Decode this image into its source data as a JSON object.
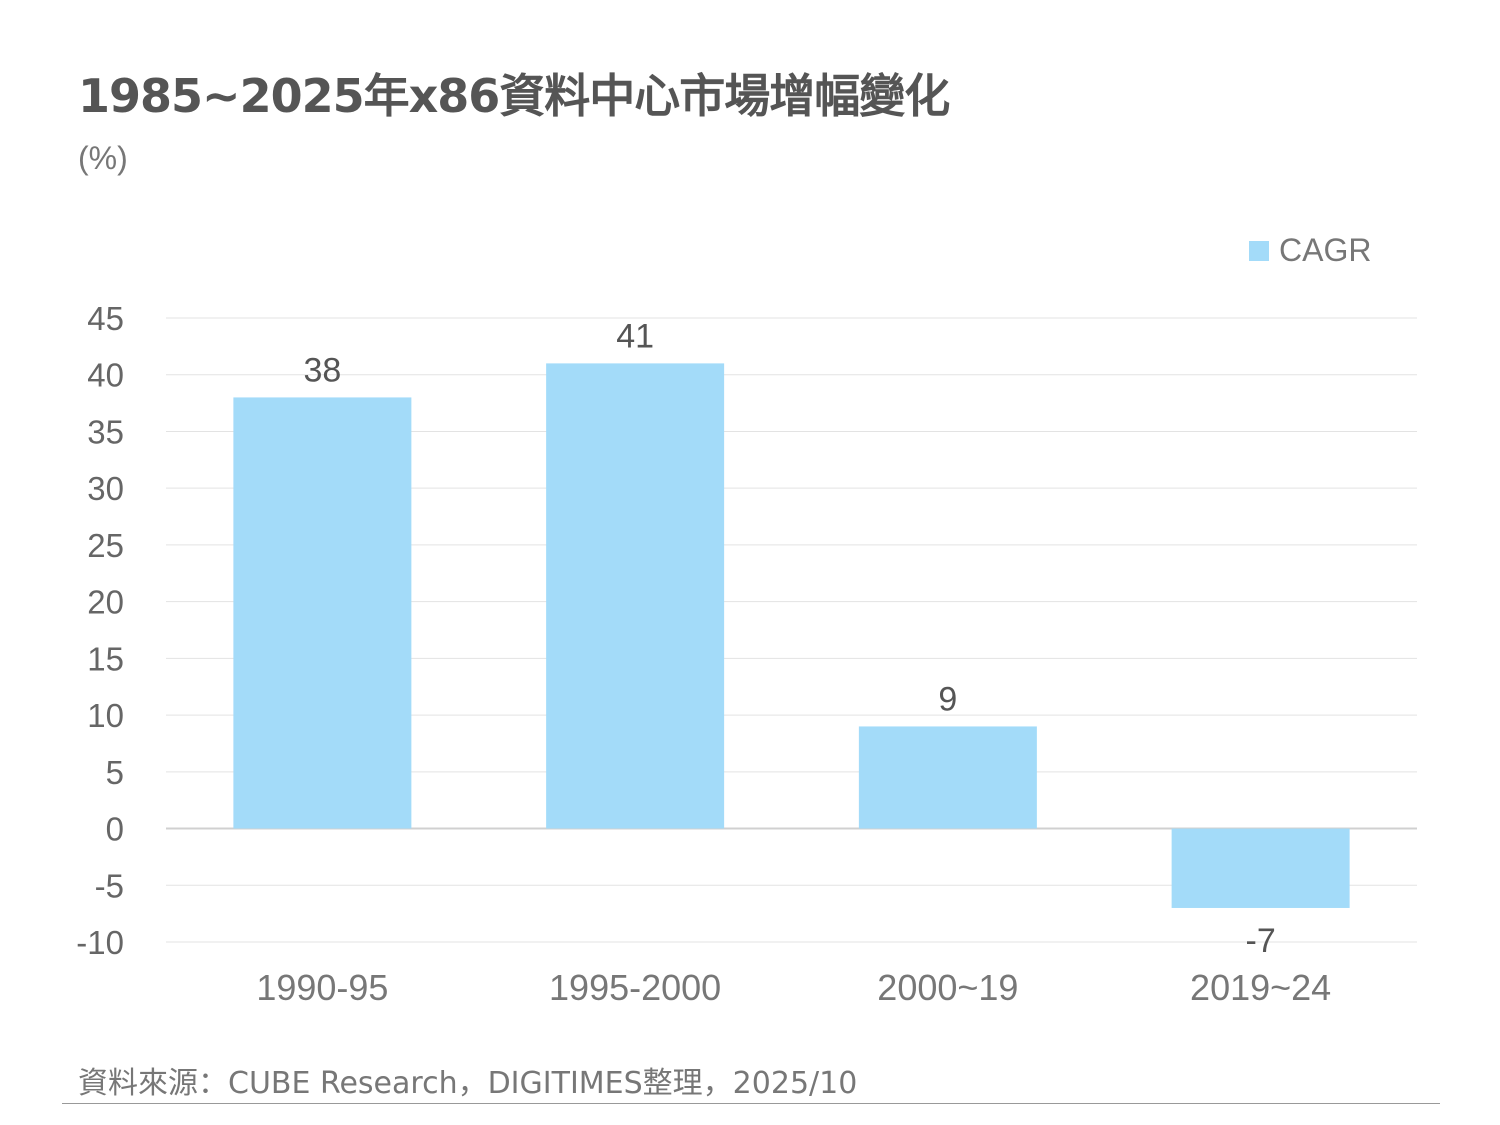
{
  "title": "1985~2025年x86資料中心市場增幅變化",
  "unit": "(%)",
  "source": "資料來源：CUBE Research，DIGITIMES整理，2025/10",
  "chart_data": {
    "type": "bar",
    "title": "1985~2025年x86資料中心市場增幅變化",
    "ylabel": "(%)",
    "xlabel": "",
    "categories": [
      "1990-95",
      "1995-2000",
      "2000~19",
      "2019~24"
    ],
    "series": [
      {
        "name": "CAGR",
        "values": [
          38,
          41,
          9,
          -7
        ],
        "color": "#a3dbf9"
      }
    ],
    "ylim": [
      -10,
      45
    ],
    "yticks": [
      45,
      40,
      35,
      30,
      25,
      20,
      15,
      10,
      5,
      0,
      -5,
      -10
    ],
    "grid": true,
    "legend": "top-right"
  }
}
